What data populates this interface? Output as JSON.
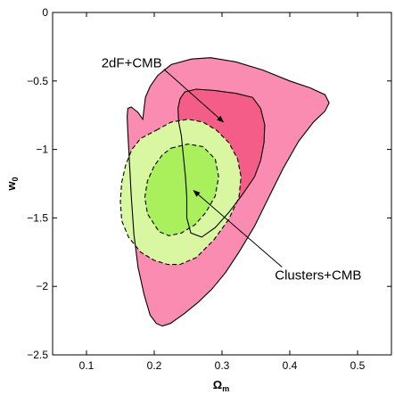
{
  "chart_data": {
    "type": "area",
    "title": "",
    "xlabel_main": "Ω",
    "xlabel_sub": "m",
    "ylabel_main": "w",
    "ylabel_sub": "0",
    "xlim": [
      0.05,
      0.55
    ],
    "ylim": [
      -2.5,
      0
    ],
    "xticks": [
      0.1,
      0.2,
      0.3,
      0.4,
      0.5
    ],
    "xtick_labels": [
      "0.1",
      "0.2",
      "0.3",
      "0.4",
      "0.5"
    ],
    "yticks": [
      0,
      -0.5,
      -1,
      -1.5,
      -2,
      -2.5
    ],
    "ytick_labels": [
      "0",
      "−0.5",
      "−1",
      "−1.5",
      "−2",
      "−2.5"
    ],
    "grid": false,
    "colors": {
      "outer_2df": "#f98cb0",
      "inner_2df": "#f45d88",
      "outer_clusters": "#d9f7a0",
      "inner_clusters": "#aaef5c",
      "stroke": "#000000"
    },
    "series": [
      {
        "name": "2dF+CMB",
        "level": "outer",
        "x": [
          0.183,
          0.187,
          0.194,
          0.205,
          0.225,
          0.255,
          0.283,
          0.32,
          0.36,
          0.4,
          0.43,
          0.452,
          0.458,
          0.452,
          0.435,
          0.413,
          0.39,
          0.37,
          0.348,
          0.325,
          0.305,
          0.285,
          0.264,
          0.244,
          0.224,
          0.212,
          0.203,
          0.194,
          0.185,
          0.176,
          0.17,
          0.166,
          0.163,
          0.161,
          0.16,
          0.161,
          0.166,
          0.176,
          0.183
        ],
        "y": [
          -0.78,
          -0.62,
          -0.54,
          -0.46,
          -0.38,
          -0.34,
          -0.33,
          -0.36,
          -0.42,
          -0.5,
          -0.55,
          -0.6,
          -0.66,
          -0.72,
          -0.8,
          -0.94,
          -1.14,
          -1.34,
          -1.56,
          -1.75,
          -1.9,
          -2.02,
          -2.12,
          -2.2,
          -2.27,
          -2.29,
          -2.27,
          -2.21,
          -2.06,
          -1.86,
          -1.62,
          -1.34,
          -1.06,
          -0.88,
          -0.76,
          -0.7,
          -0.69,
          -0.73,
          -0.78
        ]
      },
      {
        "name": "2dF+CMB",
        "level": "inner",
        "x": [
          0.24,
          0.236,
          0.235,
          0.238,
          0.245,
          0.262,
          0.29,
          0.32,
          0.345,
          0.357,
          0.363,
          0.362,
          0.357,
          0.348,
          0.33,
          0.31,
          0.29,
          0.27,
          0.254,
          0.248,
          0.248,
          0.246,
          0.243,
          0.24
        ],
        "y": [
          -0.9,
          -0.8,
          -0.7,
          -0.63,
          -0.58,
          -0.56,
          -0.57,
          -0.59,
          -0.62,
          -0.7,
          -0.82,
          -0.95,
          -1.08,
          -1.2,
          -1.33,
          -1.46,
          -1.57,
          -1.64,
          -1.61,
          -1.5,
          -1.35,
          -1.2,
          -1.05,
          -0.9
        ]
      },
      {
        "name": "Clusters+CMB",
        "level": "outer",
        "x": [
          0.203,
          0.225,
          0.25,
          0.272,
          0.292,
          0.31,
          0.323,
          0.328,
          0.325,
          0.31,
          0.288,
          0.262,
          0.238,
          0.22,
          0.2,
          0.18,
          0.162,
          0.152,
          0.15,
          0.152,
          0.158,
          0.167,
          0.18,
          0.203
        ],
        "y": [
          -0.86,
          -0.8,
          -0.78,
          -0.8,
          -0.86,
          -0.95,
          -1.07,
          -1.2,
          -1.35,
          -1.51,
          -1.66,
          -1.79,
          -1.84,
          -1.84,
          -1.81,
          -1.75,
          -1.64,
          -1.52,
          -1.38,
          -1.24,
          -1.11,
          -1.0,
          -0.92,
          -0.86
        ]
      },
      {
        "name": "Clusters+CMB",
        "level": "inner",
        "x": [
          0.225,
          0.25,
          0.272,
          0.29,
          0.295,
          0.29,
          0.276,
          0.26,
          0.24,
          0.222,
          0.207,
          0.19,
          0.186,
          0.19,
          0.2,
          0.212,
          0.225
        ],
        "y": [
          -0.99,
          -0.96,
          -0.98,
          -1.07,
          -1.2,
          -1.34,
          -1.46,
          -1.55,
          -1.61,
          -1.63,
          -1.6,
          -1.47,
          -1.35,
          -1.23,
          -1.12,
          -1.04,
          -0.99
        ]
      }
    ],
    "annotations": [
      {
        "text": "2dF+CMB",
        "x": 0.122,
        "y": -0.4,
        "arrow_to_x": 0.302,
        "arrow_to_y": -0.8
      },
      {
        "text": "Clusters+CMB",
        "x": 0.378,
        "y": -1.95,
        "arrow_to_x": 0.258,
        "arrow_to_y": -1.3
      }
    ]
  }
}
